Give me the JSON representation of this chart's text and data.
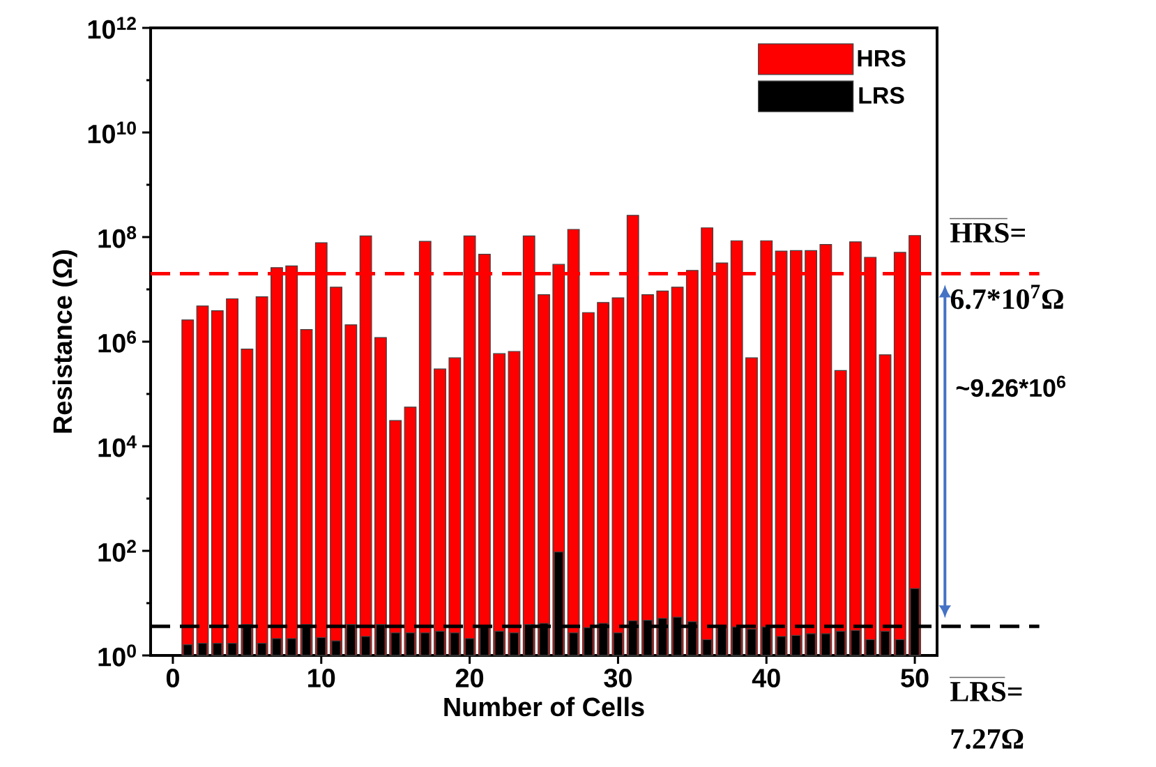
{
  "chart_data": {
    "type": "bar",
    "xlabel": "Number of Cells",
    "ylabel": "Resistance (Ω)",
    "x": [
      1,
      2,
      3,
      4,
      5,
      6,
      7,
      8,
      9,
      10,
      11,
      12,
      13,
      14,
      15,
      16,
      17,
      18,
      19,
      20,
      21,
      22,
      23,
      24,
      25,
      26,
      27,
      28,
      29,
      30,
      31,
      32,
      33,
      34,
      35,
      36,
      37,
      38,
      39,
      40,
      41,
      42,
      43,
      44,
      45,
      46,
      47,
      48,
      49,
      50
    ],
    "xlim": [
      -1.5,
      51.5
    ],
    "xticks": [
      0,
      10,
      20,
      30,
      40,
      50
    ],
    "ylim": [
      1,
      1000000000000.0
    ],
    "yticks": [
      {
        "value": 1,
        "label": "10$^{0}$"
      },
      {
        "value": 100,
        "label": "10$^{2}$"
      },
      {
        "value": 10000,
        "label": "10$^{4}$"
      },
      {
        "value": 1000000,
        "label": "10$^{6}$"
      },
      {
        "value": 100000000,
        "label": "10$^{8}$"
      },
      {
        "value": 10000000000,
        "label": "10$^{10}$"
      },
      {
        "value": 1000000000000,
        "label": "10$^{12}$"
      }
    ],
    "log": true,
    "legend": "top right",
    "series": [
      {
        "name": "HRS",
        "color": "#ff0000",
        "values": [
          2600000.0,
          4800000.0,
          3900000.0,
          6600000.0,
          720000.0,
          7200000.0,
          26000000.0,
          28000000.0,
          1700000.0,
          78000000.0,
          11000000.0,
          2100000.0,
          105000000.0,
          1200000.0,
          31000.0,
          56000.0,
          83000000.0,
          300000.0,
          490000.0,
          105000000.0,
          47000000.0,
          590000.0,
          650000.0,
          105000000.0,
          7900000.0,
          30000000.0,
          140000000.0,
          3600000.0,
          5600000.0,
          6900000.0,
          260000000.0,
          7900000.0,
          9300000.0,
          11000000.0,
          23000000.0,
          150000000.0,
          32000000.0,
          85000000.0,
          490000.0,
          85000000.0,
          54000000.0,
          55000000.0,
          55000000.0,
          72000000.0,
          280000.0,
          81000000.0,
          41000000.0,
          560000.0,
          51000000.0,
          107000000.0
        ]
      },
      {
        "name": "LRS",
        "color": "#000000",
        "values": [
          1.6,
          1.7,
          1.7,
          1.7,
          3.9,
          1.7,
          2.1,
          2.1,
          3.9,
          2.2,
          1.9,
          3.9,
          2.3,
          3.9,
          2.7,
          2.7,
          2.7,
          2.9,
          2.7,
          2.1,
          3.6,
          2.9,
          2.7,
          3.9,
          4.1,
          95,
          2.7,
          3.4,
          4.1,
          2.7,
          4.6,
          4.7,
          5.1,
          5.4,
          4.4,
          2.0,
          3.5,
          3.5,
          3.2,
          3.5,
          2.3,
          2.4,
          2.6,
          2.6,
          2.9,
          3.0,
          2.0,
          2.9,
          2.0,
          19
        ]
      }
    ],
    "ref_lines": [
      {
        "axis": "y",
        "value": 20000000.0,
        "color": "#ff0000",
        "line_style": "dashed"
      },
      {
        "axis": "y",
        "value": 3.6,
        "color": "#000000",
        "line_style": "dashed"
      }
    ],
    "annotations": [
      "HRS=",
      "6.7*10$^{7}$Ω",
      "~9.26*10$^{6}$",
      "LRS=",
      "7.27Ω"
    ]
  }
}
